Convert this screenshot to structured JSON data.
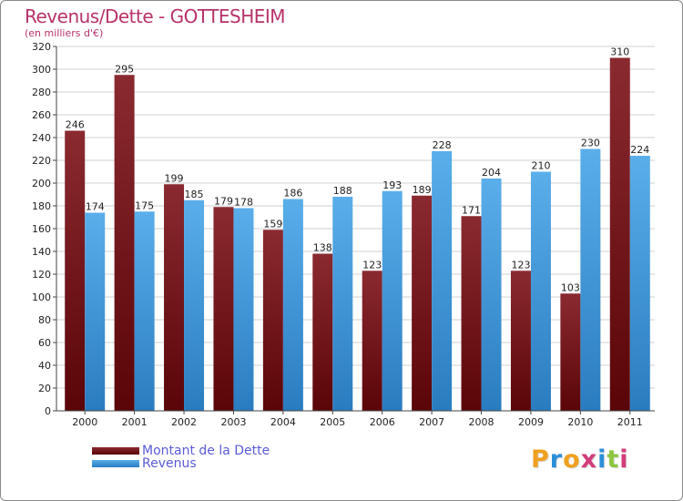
{
  "title": "Revenus/Dette - GOTTESHEIM",
  "subtitle": "(en milliers d'€)",
  "logo": {
    "letters": [
      "P",
      "r",
      "o",
      "x",
      "i",
      "t",
      "i"
    ],
    "colors": [
      "#f0a020",
      "#2b8fd8",
      "#f0a020",
      "#d23c7a",
      "#2b8fd8",
      "#8cc63f",
      "#d23c7a"
    ]
  },
  "colors": {
    "dette": "#7a1d22",
    "revenus": "#3b97dd",
    "grid": "#d0d0d0",
    "axis": "#444444"
  },
  "chart_data": {
    "type": "bar",
    "title": "Revenus/Dette - GOTTESHEIM",
    "subtitle": "(en milliers d'€)",
    "categories": [
      "2000",
      "2001",
      "2002",
      "2003",
      "2004",
      "2005",
      "2006",
      "2007",
      "2008",
      "2009",
      "2010",
      "2011"
    ],
    "series": [
      {
        "name": "Montant de la Dette",
        "values": [
          246,
          295,
          199,
          179,
          159,
          138,
          123,
          189,
          171,
          123,
          103,
          310
        ]
      },
      {
        "name": "Revenus",
        "values": [
          174,
          175,
          185,
          178,
          186,
          188,
          193,
          228,
          204,
          210,
          230,
          224
        ]
      }
    ],
    "ylim": [
      0,
      320
    ],
    "yticks": [
      0,
      20,
      40,
      60,
      80,
      100,
      120,
      140,
      160,
      180,
      200,
      220,
      240,
      260,
      280,
      300,
      320
    ],
    "grid": true,
    "legend": "bottom-left"
  }
}
